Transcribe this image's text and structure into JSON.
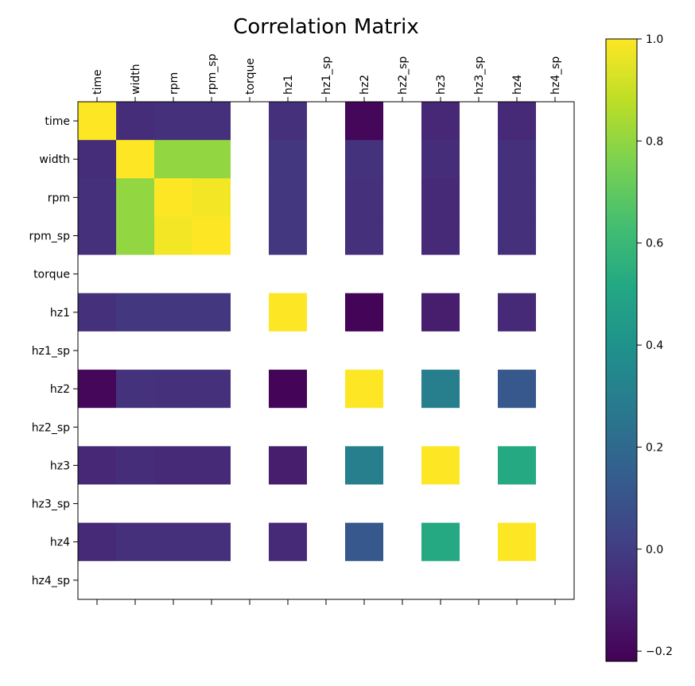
{
  "chart_data": {
    "type": "heatmap",
    "title": "Correlation Matrix",
    "labels": [
      "time",
      "width",
      "rpm",
      "rpm_sp",
      "torque",
      "hz1",
      "hz1_sp",
      "hz2",
      "hz2_sp",
      "hz3",
      "hz3_sp",
      "hz4",
      "hz4_sp"
    ],
    "colormap": "viridis",
    "vmin": -0.22,
    "vmax": 1.0,
    "colorbar_ticks": [
      {
        "value": 1.0,
        "label": "1.0"
      },
      {
        "value": 0.8,
        "label": "0.8"
      },
      {
        "value": 0.6,
        "label": "0.6"
      },
      {
        "value": 0.4,
        "label": "0.4"
      },
      {
        "value": 0.2,
        "label": "0.2"
      },
      {
        "value": 0.0,
        "label": "0.0"
      },
      {
        "value": -0.2,
        "label": "−0.2"
      }
    ],
    "missing_color": "#ffffff",
    "matrix": [
      [
        1.0,
        -0.06,
        -0.05,
        -0.05,
        null,
        -0.05,
        null,
        -0.2,
        null,
        -0.08,
        null,
        -0.07,
        null
      ],
      [
        -0.06,
        1.0,
        0.8,
        0.8,
        null,
        -0.02,
        null,
        -0.04,
        null,
        -0.06,
        null,
        -0.05,
        null
      ],
      [
        -0.05,
        0.8,
        1.0,
        0.98,
        null,
        -0.02,
        null,
        -0.05,
        null,
        -0.07,
        null,
        -0.05,
        null
      ],
      [
        -0.05,
        0.8,
        0.98,
        1.0,
        null,
        -0.02,
        null,
        -0.05,
        null,
        -0.07,
        null,
        -0.05,
        null
      ],
      [
        null,
        null,
        null,
        null,
        null,
        null,
        null,
        null,
        null,
        null,
        null,
        null,
        null
      ],
      [
        -0.05,
        -0.02,
        -0.02,
        -0.02,
        null,
        1.0,
        null,
        -0.21,
        null,
        -0.12,
        null,
        -0.07,
        null
      ],
      [
        null,
        null,
        null,
        null,
        null,
        null,
        null,
        null,
        null,
        null,
        null,
        null,
        null
      ],
      [
        -0.2,
        -0.04,
        -0.05,
        -0.05,
        null,
        -0.21,
        null,
        1.0,
        null,
        0.3,
        null,
        0.12,
        null
      ],
      [
        null,
        null,
        null,
        null,
        null,
        null,
        null,
        null,
        null,
        null,
        null,
        null,
        null
      ],
      [
        -0.08,
        -0.06,
        -0.07,
        -0.07,
        null,
        -0.12,
        null,
        0.3,
        null,
        1.0,
        null,
        0.52,
        null
      ],
      [
        null,
        null,
        null,
        null,
        null,
        null,
        null,
        null,
        null,
        null,
        null,
        null,
        null
      ],
      [
        -0.07,
        -0.05,
        -0.05,
        -0.05,
        null,
        -0.07,
        null,
        0.12,
        null,
        0.52,
        null,
        1.0,
        null
      ],
      [
        null,
        null,
        null,
        null,
        null,
        null,
        null,
        null,
        null,
        null,
        null,
        null,
        null
      ]
    ]
  }
}
